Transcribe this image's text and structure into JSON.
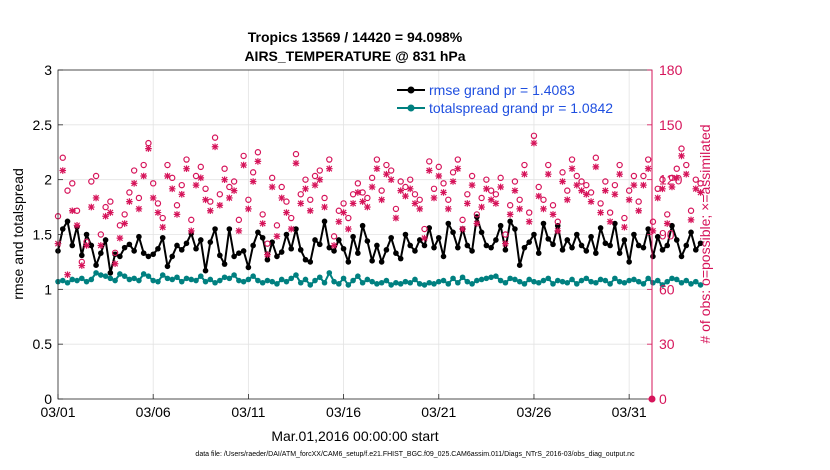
{
  "chart_data": {
    "type": "line",
    "title": "Tropics 13569 / 14420 = 94.098%",
    "subtitle": "AIRS_TEMPERATURE @ 831 hPa",
    "xlabel": "Mar.01,2016 00:00:00 start",
    "ylabel_left": "rmse and totalspread",
    "ylabel_right": "# of obs: o=possible; ×=assimilated",
    "xlim": [
      0,
      31.2
    ],
    "ylim_left": [
      0,
      3
    ],
    "ylim_right": [
      0,
      180
    ],
    "grid": true,
    "legend_position": "top-right",
    "x_ticks": [
      0,
      5,
      10,
      15,
      20,
      25,
      30
    ],
    "x_tick_labels": [
      "03/01",
      "03/06",
      "03/11",
      "03/16",
      "03/21",
      "03/26",
      "03/31"
    ],
    "y_left_ticks": [
      0,
      0.5,
      1,
      1.5,
      2,
      2.5,
      3
    ],
    "y_left_tick_labels": [
      "0",
      "0.5",
      "1",
      "1.5",
      "2",
      "2.5",
      "3"
    ],
    "y_right_ticks": [
      0,
      30,
      60,
      90,
      120,
      150,
      180
    ],
    "y_right_tick_labels": [
      "0",
      "30",
      "60",
      "90",
      "120",
      "150",
      "180"
    ],
    "x_step_days": 0.25,
    "series": [
      {
        "name": "rmse grand pr = 1.4083",
        "axis": "left",
        "color": "#000000",
        "marker": "dot",
        "values": [
          1.35,
          1.55,
          1.62,
          1.4,
          1.57,
          1.31,
          1.5,
          1.4,
          1.22,
          1.33,
          1.45,
          1.15,
          1.32,
          1.3,
          1.38,
          1.41,
          1.35,
          1.48,
          1.33,
          1.3,
          1.32,
          1.37,
          1.47,
          1.21,
          1.3,
          1.4,
          1.36,
          1.42,
          1.51,
          1.37,
          1.45,
          1.17,
          1.43,
          1.55,
          1.31,
          1.23,
          1.55,
          1.3,
          1.33,
          1.35,
          1.2,
          1.4,
          1.52,
          1.47,
          1.27,
          1.43,
          1.3,
          1.34,
          1.5,
          1.37,
          1.55,
          1.36,
          1.27,
          1.25,
          1.45,
          1.41,
          1.62,
          1.38,
          1.35,
          1.45,
          1.37,
          1.25,
          1.48,
          1.33,
          1.58,
          1.44,
          1.26,
          1.4,
          1.25,
          1.36,
          1.47,
          1.33,
          1.28,
          1.5,
          1.4,
          1.35,
          1.45,
          1.4,
          1.56,
          1.38,
          1.47,
          1.3,
          1.6,
          1.52,
          1.38,
          1.55,
          1.4,
          1.35,
          1.66,
          1.52,
          1.4,
          1.38,
          1.45,
          1.58,
          1.36,
          1.62,
          1.55,
          1.22,
          1.38,
          1.43,
          1.5,
          1.33,
          1.6,
          1.46,
          1.41,
          1.58,
          1.36,
          1.45,
          1.38,
          1.5,
          1.4,
          1.35,
          1.48,
          1.33,
          1.56,
          1.42,
          1.4,
          1.6,
          1.33,
          1.45,
          1.25,
          1.5,
          1.4,
          1.38,
          1.55,
          1.3,
          1.48,
          1.36,
          1.4,
          1.58,
          1.45,
          1.3,
          1.4,
          1.52,
          1.36,
          1.42
        ]
      },
      {
        "name": "totalspread grand pr = 1.0842",
        "axis": "left",
        "color": "#008080",
        "marker": "dot",
        "values": [
          1.07,
          1.08,
          1.06,
          1.09,
          1.08,
          1.1,
          1.07,
          1.09,
          1.15,
          1.13,
          1.12,
          1.1,
          1.08,
          1.14,
          1.12,
          1.09,
          1.1,
          1.08,
          1.14,
          1.12,
          1.08,
          1.07,
          1.13,
          1.1,
          1.09,
          1.11,
          1.07,
          1.1,
          1.09,
          1.08,
          1.12,
          1.07,
          1.09,
          1.06,
          1.08,
          1.11,
          1.1,
          1.13,
          1.08,
          1.07,
          1.09,
          1.12,
          1.08,
          1.06,
          1.08,
          1.07,
          1.05,
          1.09,
          1.07,
          1.1,
          1.13,
          1.06,
          1.09,
          1.04,
          1.08,
          1.11,
          1.06,
          1.15,
          1.07,
          1.05,
          1.1,
          1.04,
          1.08,
          1.12,
          1.06,
          1.09,
          1.07,
          1.05,
          1.06,
          1.08,
          1.04,
          1.06,
          1.05,
          1.07,
          1.06,
          1.09,
          1.05,
          1.04,
          1.06,
          1.05,
          1.07,
          1.08,
          1.05,
          1.1,
          1.06,
          1.11,
          1.07,
          1.05,
          1.08,
          1.09,
          1.1,
          1.11,
          1.12,
          1.08,
          1.06,
          1.1,
          1.09,
          1.07,
          1.05,
          1.09,
          1.07,
          1.06,
          1.08,
          1.1,
          1.05,
          1.08,
          1.07,
          1.06,
          1.09,
          1.05,
          1.08,
          1.1,
          1.07,
          1.06,
          1.09,
          1.08,
          1.05,
          1.1,
          1.07,
          1.06,
          1.08,
          1.09,
          1.07,
          1.05,
          1.1,
          1.06,
          1.08,
          1.04,
          1.07,
          1.1,
          1.09,
          1.06,
          1.08,
          1.05,
          1.07,
          1.04
        ]
      },
      {
        "name": "# of obs possible",
        "axis": "right",
        "color": "#d6145a",
        "marker": "o",
        "values": [
          100,
          132,
          114,
          118,
          103,
          75,
          86,
          119,
          122,
          90,
          105,
          108,
          80,
          95,
          101,
          113,
          125,
          110,
          128,
          140,
          118,
          107,
          99,
          128,
          121,
          106,
          117,
          131,
          98,
          122,
          127,
          115,
          108,
          143,
          112,
          126,
          116,
          119,
          98,
          133,
          109,
          124,
          135,
          101,
          85,
          121,
          95,
          116,
          108,
          99,
          134,
          112,
          120,
          109,
          122,
          125,
          110,
          131,
          89,
          103,
          107,
          99,
          112,
          118,
          113,
          110,
          121,
          131,
          114,
          128,
          125,
          104,
          119,
          116,
          120,
          112,
          109,
          93,
          130,
          115,
          127,
          118,
          109,
          124,
          131,
          98,
          112,
          122,
          101,
          110,
          120,
          114,
          112,
          121,
          90,
          106,
          119,
          109,
          128,
          102,
          144,
          116,
          109,
          128,
          106,
          97,
          124,
          114,
          131,
          122,
          119,
          117,
          113,
          132,
          107,
          119,
          102,
          117,
          128,
          99,
          114,
          122,
          108,
          122,
          131,
          97,
          115,
          120,
          101,
          121,
          126,
          137,
          128,
          103,
          120,
          118
        ]
      },
      {
        "name": "# of obs assimilated",
        "axis": "right",
        "color": "#d6145a",
        "marker": "x",
        "values": [
          85,
          125,
          68,
          103,
          95,
          73,
          84,
          105,
          110,
          84,
          100,
          102,
          74,
          88,
          96,
          108,
          118,
          104,
          122,
          137,
          110,
          102,
          94,
          122,
          115,
          101,
          112,
          126,
          92,
          117,
          121,
          109,
          103,
          138,
          106,
          120,
          110,
          114,
          92,
          128,
          104,
          119,
          130,
          96,
          79,
          116,
          89,
          110,
          102,
          93,
          129,
          107,
          115,
          103,
          117,
          120,
          105,
          126,
          84,
          97,
          102,
          93,
          107,
          113,
          108,
          105,
          116,
          126,
          109,
          123,
          120,
          99,
          114,
          111,
          115,
          107,
          104,
          88,
          125,
          110,
          122,
          113,
          104,
          119,
          126,
          93,
          107,
          117,
          96,
          105,
          115,
          109,
          107,
          116,
          85,
          101,
          114,
          104,
          123,
          97,
          140,
          111,
          104,
          123,
          101,
          92,
          119,
          109,
          126,
          117,
          114,
          112,
          108,
          127,
          102,
          114,
          97,
          112,
          123,
          94,
          109,
          117,
          103,
          117,
          126,
          92,
          110,
          115,
          96,
          116,
          121,
          133,
          123,
          98,
          115,
          113
        ]
      }
    ]
  },
  "footer_note": "data file: /Users/raeder/DAI/ATM_forcXX/CAM6_setup/f.e21.FHIST_BGC.f09_025.CAM6assim.011/Diags_NTrS_2016-03/obs_diag_output.nc"
}
